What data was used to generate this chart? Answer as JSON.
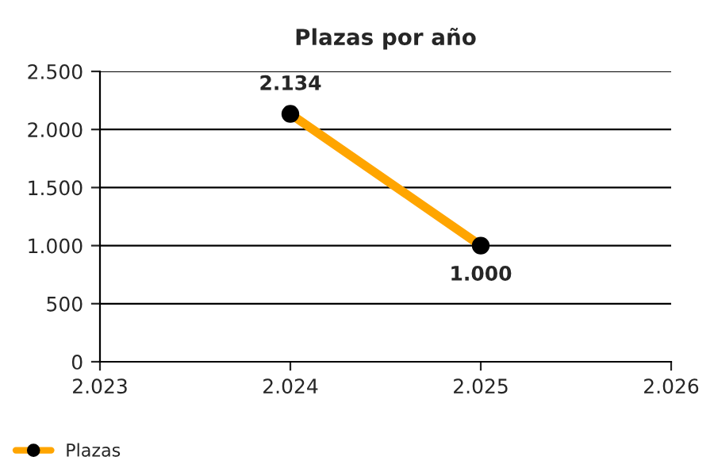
{
  "chart_data": {
    "type": "line",
    "title": "Plazas por año",
    "x": [
      2024,
      2025
    ],
    "series": [
      {
        "name": "Plazas",
        "color": "#ffa500",
        "values": [
          2134,
          1000
        ],
        "value_labels": [
          "2.134",
          "1.000"
        ]
      }
    ],
    "xlim": [
      2023,
      2026
    ],
    "xticks": [
      {
        "value": 2023,
        "label": "2.023"
      },
      {
        "value": 2024,
        "label": "2.024"
      },
      {
        "value": 2025,
        "label": "2.025"
      },
      {
        "value": 2026,
        "label": "2.026"
      }
    ],
    "ylim": [
      0,
      2500
    ],
    "yticks": [
      {
        "value": 0,
        "label": "0"
      },
      {
        "value": 500,
        "label": "500"
      },
      {
        "value": 1000,
        "label": "1.000"
      },
      {
        "value": 1500,
        "label": "1.500"
      },
      {
        "value": 2000,
        "label": "2.000"
      },
      {
        "value": 2500,
        "label": "2.500"
      }
    ],
    "grid": "y",
    "legend": "bottom left",
    "marker": "circle",
    "line_style": "solid"
  }
}
